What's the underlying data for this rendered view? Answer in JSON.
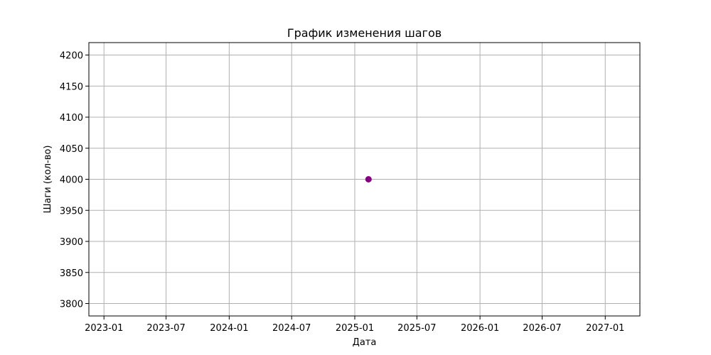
{
  "chart_data": {
    "type": "scatter",
    "title": "График изменения шагов",
    "xlabel": "Дата",
    "ylabel": "Шаги (кол-во)",
    "x_tick_labels": [
      "2023-01",
      "2023-07",
      "2024-01",
      "2024-07",
      "2025-01",
      "2025-07",
      "2026-01",
      "2026-07",
      "2027-01"
    ],
    "y_ticks": [
      3800,
      3850,
      3900,
      3950,
      4000,
      4050,
      4100,
      4150,
      4200
    ],
    "xlim": [
      "2022-11-18",
      "2027-04-12"
    ],
    "ylim": [
      3780,
      4220
    ],
    "grid": true,
    "point_color": "#800080",
    "points": [
      {
        "x": "2025-02-10",
        "y": 4000
      }
    ]
  }
}
